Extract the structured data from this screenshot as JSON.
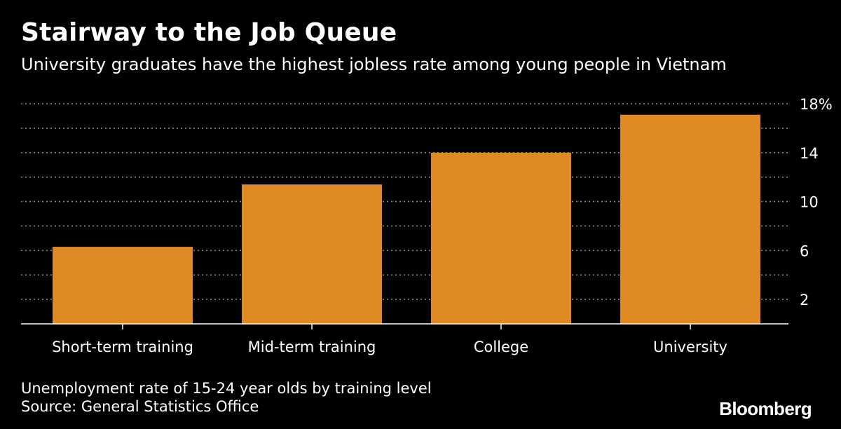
{
  "header": {
    "title": "Stairway to the Job Queue",
    "subtitle": "University graduates have the highest jobless rate among young people in Vietnam"
  },
  "footer": {
    "note": "Unemployment rate of 15-24 year olds by training level",
    "source": "Source: General Statistics Office",
    "brand": "Bloomberg"
  },
  "colors": {
    "background": "#000000",
    "bar": "#E08A25",
    "text": "#FFFFFF",
    "grid": "#8C8C8C"
  },
  "chart_data": {
    "type": "bar",
    "title": "Stairway to the Job Queue",
    "subtitle": "University graduates have the highest jobless rate among young people in Vietnam",
    "categories": [
      "Short-term training",
      "Mid-term training",
      "College",
      "University"
    ],
    "values": [
      6.3,
      11.4,
      14.0,
      17.1
    ],
    "unit": "%",
    "ylim": [
      0,
      18
    ],
    "yticks": [
      2,
      6,
      10,
      14,
      18
    ],
    "ytick_labels": [
      "2",
      "6",
      "10",
      "14",
      "18%"
    ],
    "gridlines": [
      2,
      4,
      6,
      8,
      10,
      12,
      14,
      16,
      18
    ],
    "grid": true,
    "grid_style": "dotted",
    "y_axis_position": "right",
    "xlabel": "",
    "ylabel": ""
  }
}
